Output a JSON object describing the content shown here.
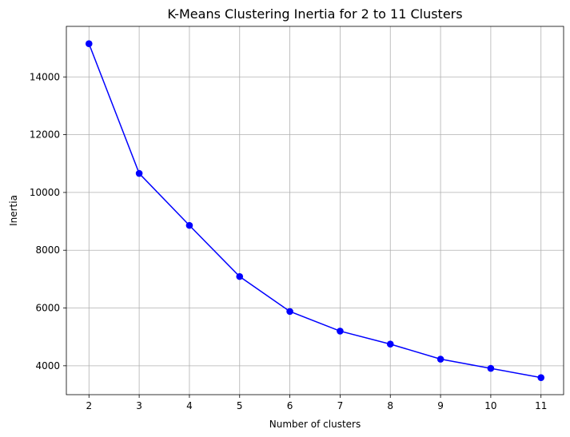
{
  "chart_data": {
    "type": "line",
    "title": "K-Means Clustering Inertia for 2 to 11 Clusters",
    "xlabel": "Number of clusters",
    "ylabel": "Inertia",
    "x": [
      2,
      3,
      4,
      5,
      6,
      7,
      8,
      9,
      10,
      11
    ],
    "series": [
      {
        "values": [
          15150,
          10660,
          8860,
          7090,
          5880,
          5200,
          4750,
          4230,
          3910,
          3590
        ],
        "color": "#0000ff",
        "marker": "circle"
      }
    ],
    "xticks": [
      "2",
      "3",
      "4",
      "5",
      "6",
      "7",
      "8",
      "9",
      "10",
      "11"
    ],
    "yticks": [
      "4000",
      "6000",
      "8000",
      "10000",
      "12000",
      "14000"
    ],
    "xlim": [
      1.55,
      11.45
    ],
    "ylim": [
      3000,
      15750
    ],
    "grid": true,
    "legend": "none"
  }
}
